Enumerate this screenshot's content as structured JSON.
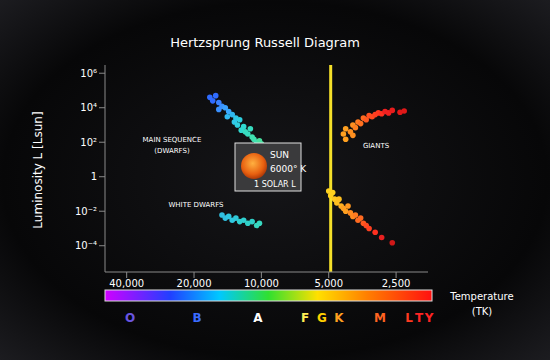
{
  "chart_data": {
    "type": "scatter",
    "title": "Hertzsprung Russell Diagram",
    "x_label": "Temperature",
    "x_label_unit": "(TK)",
    "y_label": "Luminosity L [Lsun]",
    "log": true,
    "grid": false,
    "xlim": [
      50000,
      1800
    ],
    "xticks": [
      {
        "value": 40000,
        "label": "40,000"
      },
      {
        "value": 20000,
        "label": "20,000"
      },
      {
        "value": 10000,
        "label": "10,000"
      },
      {
        "value": 5000,
        "label": "5,000"
      },
      {
        "value": 2500,
        "label": "2,500"
      }
    ],
    "ylim": [
      3e-06,
      3000000
    ],
    "yticks": [
      {
        "value": 0.0001,
        "label": "10⁻⁴"
      },
      {
        "value": 0.01,
        "label": "10⁻²"
      },
      1,
      {
        "value": 100,
        "label": "10²"
      },
      {
        "value": 10000,
        "label": "10⁴"
      },
      {
        "value": 1000000,
        "label": "10⁶"
      }
    ],
    "x": [
      17000,
      16500,
      16000,
      15500,
      15000,
      15500,
      14500,
      14000,
      14200,
      13500,
      13000,
      13200,
      12800,
      12500,
      12000,
      12300,
      11800,
      11500,
      11200,
      11000,
      10800,
      10500,
      10200,
      10000,
      9800,
      5000,
      4900,
      4800,
      4700,
      4600,
      4500,
      4400,
      4300,
      4200,
      4100,
      4000,
      3900,
      3800,
      3700,
      3600,
      3500,
      3400,
      3300,
      3100,
      2900,
      2600,
      4300,
      4200,
      4000,
      3900,
      3800,
      3700,
      3600,
      3500,
      3400,
      3300,
      3200,
      3100,
      3000,
      2900,
      2800,
      2700,
      2600,
      2400,
      2300,
      4200,
      3900,
      15000,
      14500,
      14000,
      13500,
      13000,
      12500,
      12000,
      11500,
      11000,
      10500,
      10200
    ],
    "values": [
      40000,
      25000,
      50000,
      20000,
      12000,
      8000,
      10000,
      6000,
      3000,
      4000,
      2500,
      1500,
      1000,
      2000,
      800,
      500,
      400,
      300,
      600,
      200,
      150,
      100,
      120,
      80,
      60,
      0.15,
      0.08,
      0.12,
      0.05,
      0.03,
      0.05,
      0.02,
      0.015,
      0.01,
      0.02,
      0.008,
      0.005,
      0.006,
      0.003,
      0.004,
      0.002,
      0.0015,
      0.001,
      0.0006,
      0.0003,
      0.00015,
      300,
      600,
      400,
      1000,
      700,
      1500,
      1200,
      2500,
      2000,
      3500,
      3000,
      4000,
      5000,
      4500,
      6000,
      5000,
      7000,
      5500,
      6500,
      150,
      250,
      0.006,
      0.004,
      0.005,
      0.003,
      0.004,
      0.0025,
      0.003,
      0.002,
      0.0025,
      0.0015,
      0.002
    ],
    "colors": [
      "#2f6bff",
      "#2f6bff",
      "#2f6bff",
      "#3a80ff",
      "#3a90ff",
      "#3a90ff",
      "#3aa0ff",
      "#3aa8ff",
      "#30b8f0",
      "#30b8f0",
      "#2fc8e8",
      "#2fc8e8",
      "#2fd0e0",
      "#2fd0e0",
      "#30d8d0",
      "#30d8d0",
      "#38dcc0",
      "#38dcc0",
      "#38dcc0",
      "#40e0b0",
      "#40e0b0",
      "#40e0b0",
      "#48e0a0",
      "#48e0a0",
      "#48e0a0",
      "#ffd21f",
      "#ffd21f",
      "#ffd21f",
      "#ffc820",
      "#ffc020",
      "#ffc020",
      "#ffb020",
      "#ffa020",
      "#ffa020",
      "#ff9820",
      "#ff8a20",
      "#ff8a20",
      "#ff7a20",
      "#ff6a20",
      "#ff6a20",
      "#ff5a20",
      "#ff4a20",
      "#ff4020",
      "#ff3020",
      "#e82020",
      "#d01818",
      "#ffa020",
      "#ffa020",
      "#ff9020",
      "#ff9020",
      "#ff8020",
      "#ff7a20",
      "#ff7020",
      "#ff6a20",
      "#ff5a20",
      "#ff5020",
      "#ff4a20",
      "#ff4020",
      "#ff3a20",
      "#ff3020",
      "#f02020",
      "#f02020",
      "#e81c1c",
      "#e01818",
      "#e01818",
      "#ffa020",
      "#ff9020",
      "#30c0e0",
      "#30c0e0",
      "#30c8e0",
      "#30c8e0",
      "#30c8d8",
      "#30d0d0",
      "#30d0d0",
      "#30d0c8",
      "#30d0c8",
      "#38d8c0",
      "#38d8c0"
    ],
    "vertical_line": {
      "x": 4900,
      "color": "#f5e02a"
    },
    "annotations": [
      "MAIN SEQUENCE",
      "(DWARFS)",
      "GIANTS",
      "WHITE DWARFS"
    ],
    "sun": {
      "label": "SUN",
      "temperature": "6000° K",
      "luminosity": "1 SOLAR L"
    },
    "spectral_classes": [
      {
        "label": "O",
        "color": "#6a55e0"
      },
      {
        "label": "B",
        "color": "#3a6cff"
      },
      {
        "label": "A",
        "color": "#ffffff"
      },
      {
        "label": "F",
        "color": "#ffee55"
      },
      {
        "label": "G",
        "color": "#ffd000"
      },
      {
        "label": "K",
        "color": "#ffa020"
      },
      {
        "label": "M",
        "color": "#ff6420"
      },
      {
        "label": "L",
        "color": "#ff3a20"
      },
      {
        "label": "T",
        "color": "#ff2424"
      },
      {
        "label": "Y",
        "color": "#ff2424"
      }
    ]
  }
}
